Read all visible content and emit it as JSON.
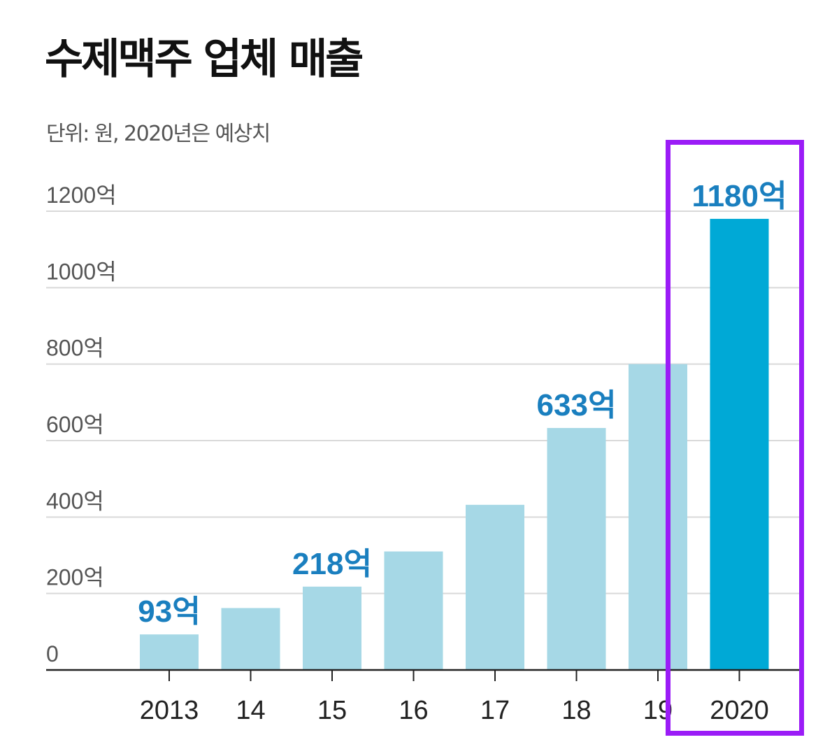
{
  "title": "수제맥주 업체 매출",
  "subtitle": "단위: 원, 2020년은 예상치",
  "chart_data": {
    "type": "bar",
    "categories": [
      "2013",
      "14",
      "15",
      "16",
      "17",
      "18",
      "19",
      "2020"
    ],
    "values": [
      93,
      162,
      218,
      310,
      432,
      633,
      800,
      1180
    ],
    "data_labels": [
      "93억",
      "",
      "218억",
      "",
      "",
      "633억",
      "",
      "1180억"
    ],
    "yticks": [
      {
        "value": 0,
        "label": "0"
      },
      {
        "value": 200,
        "label": "200억"
      },
      {
        "value": 400,
        "label": "400억"
      },
      {
        "value": 600,
        "label": "600억"
      },
      {
        "value": 800,
        "label": "800억"
      },
      {
        "value": 1000,
        "label": "1000억"
      },
      {
        "value": 1200,
        "label": "1200억"
      }
    ],
    "ylim": [
      0,
      1200
    ],
    "grid": true,
    "highlight_category": "2020",
    "colors": {
      "bar": "#a6d8e6",
      "highlight_bar": "#00a9d6",
      "label": "#1a7fbf",
      "grid": "#d9d9d9",
      "axis": "#222222",
      "highlight_box": "#9b1cf7"
    }
  }
}
